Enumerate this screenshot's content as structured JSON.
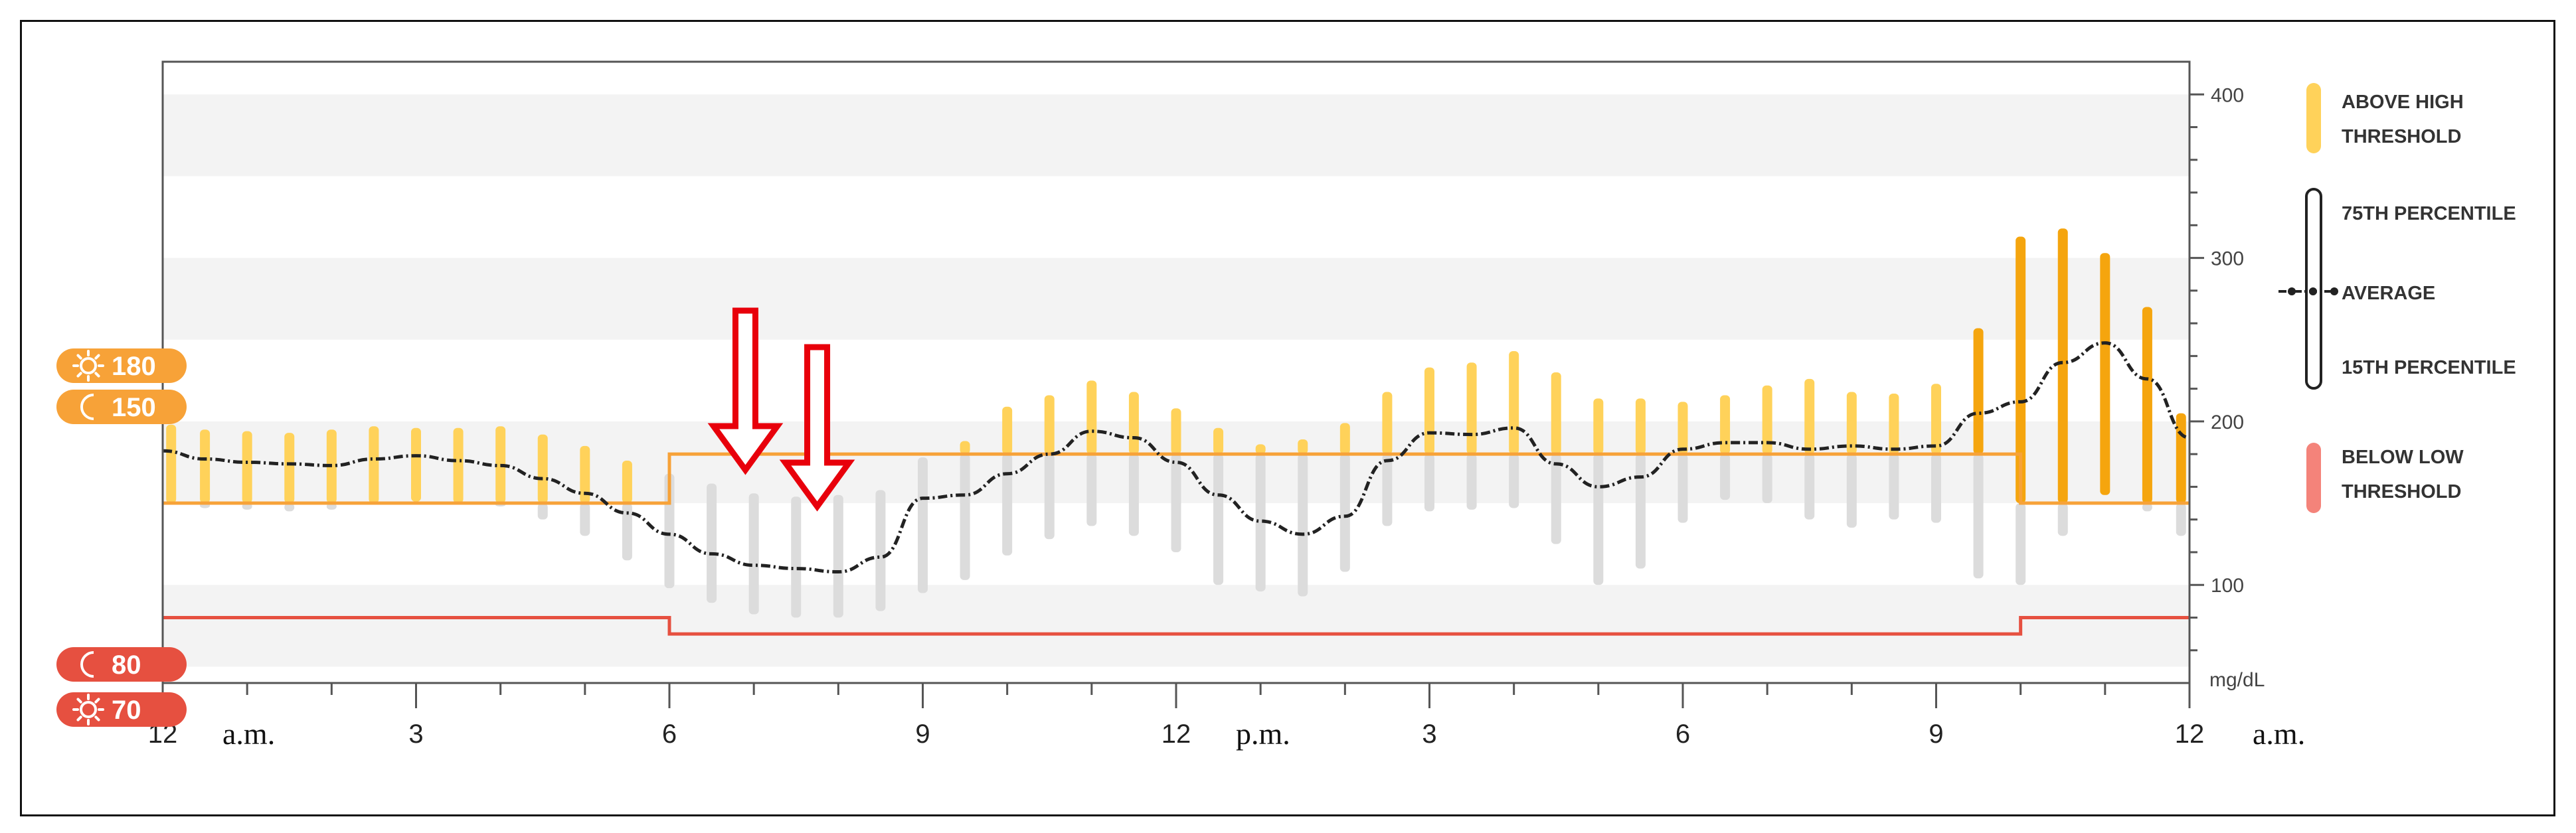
{
  "chart_data": {
    "type": "bar",
    "y_unit": "mg/dL",
    "ylim": [
      40,
      420
    ],
    "y_ticks": [
      100,
      200,
      300,
      400
    ],
    "y_tick_labels": [
      "100",
      "200",
      "300",
      "400"
    ],
    "x_ticks": [
      0,
      3,
      6,
      9,
      12,
      15,
      18,
      21,
      24
    ],
    "x_tick_labels": [
      "12",
      "3",
      "6",
      "9",
      "12",
      "3",
      "6",
      "9",
      "12"
    ],
    "period_labels": [
      "a.m.",
      "p.m.",
      "a.m."
    ],
    "thresholds": {
      "high_night": 150,
      "high_day": 180,
      "low_night": 80,
      "low_day": 70,
      "day_start_hour": 6,
      "day_end_hour": 22
    },
    "threshold_badges": [
      {
        "icon": "sun-icon",
        "value": "180"
      },
      {
        "icon": "moon-icon",
        "value": "150"
      },
      {
        "icon": "moon-icon",
        "value": "80"
      },
      {
        "icon": "sun-icon",
        "value": "70"
      }
    ],
    "series": [
      {
        "name": "Average",
        "hours": [
          0,
          0.5,
          1,
          1.5,
          2,
          2.5,
          3,
          3.5,
          4,
          4.5,
          5,
          5.5,
          6,
          6.5,
          7,
          7.5,
          8,
          8.5,
          9,
          9.5,
          10,
          10.5,
          11,
          11.5,
          12,
          12.5,
          13,
          13.5,
          14,
          14.5,
          15,
          15.5,
          16,
          16.5,
          17,
          17.5,
          18,
          18.5,
          19,
          19.5,
          20,
          20.5,
          21,
          21.5,
          22,
          22.5,
          23,
          23.5,
          24
        ],
        "values": [
          182,
          177,
          175,
          174,
          173,
          177,
          179,
          176,
          173,
          165,
          156,
          144,
          131,
          119,
          112,
          110,
          108,
          117,
          153,
          155,
          168,
          180,
          194,
          190,
          175,
          155,
          139,
          131,
          142,
          176,
          193,
          192,
          196,
          174,
          160,
          166,
          183,
          187,
          187,
          183,
          185,
          183,
          185,
          205,
          212,
          236,
          248,
          226,
          190
        ]
      },
      {
        "name": "75th Percentile",
        "values": [
          198,
          195,
          194,
          193,
          195,
          197,
          196,
          196,
          197,
          192,
          185,
          176,
          168,
          162,
          156,
          154,
          155,
          158,
          178,
          188,
          209,
          216,
          225,
          218,
          208,
          196,
          186,
          189,
          199,
          218,
          233,
          236,
          243,
          230,
          214,
          214,
          212,
          216,
          222,
          226,
          218,
          217,
          223,
          257,
          313,
          318,
          303,
          270,
          205
        ]
      },
      {
        "name": "15th Percentile",
        "values": [
          150,
          147,
          146,
          145,
          146,
          149,
          151,
          150,
          148,
          140,
          130,
          115,
          98,
          89,
          82,
          80,
          80,
          84,
          95,
          103,
          118,
          128,
          136,
          130,
          120,
          100,
          96,
          93,
          108,
          136,
          145,
          146,
          147,
          125,
          100,
          110,
          138,
          152,
          150,
          140,
          135,
          140,
          138,
          104,
          100,
          130,
          155,
          145,
          130
        ]
      }
    ]
  },
  "legend": {
    "above_high": "ABOVE HIGH\nTHRESHOLD",
    "p75": "75TH PERCENTILE",
    "average": "AVERAGE",
    "p15": "15TH PERCENTILE",
    "below_low": "BELOW LOW\nTHRESHOLD"
  },
  "colors": {
    "above_high": "#FFD25A",
    "above_high_late": "#F5A50E",
    "in_range": "#DCDCDC",
    "below_low": "#F4837A",
    "high_line": "#F7A238",
    "low_line": "#E65040",
    "arrow": "#E8000B"
  },
  "annotations": [
    {
      "type": "arrow-down",
      "hour": 6.9
    },
    {
      "type": "arrow-down",
      "hour": 7.75
    }
  ]
}
